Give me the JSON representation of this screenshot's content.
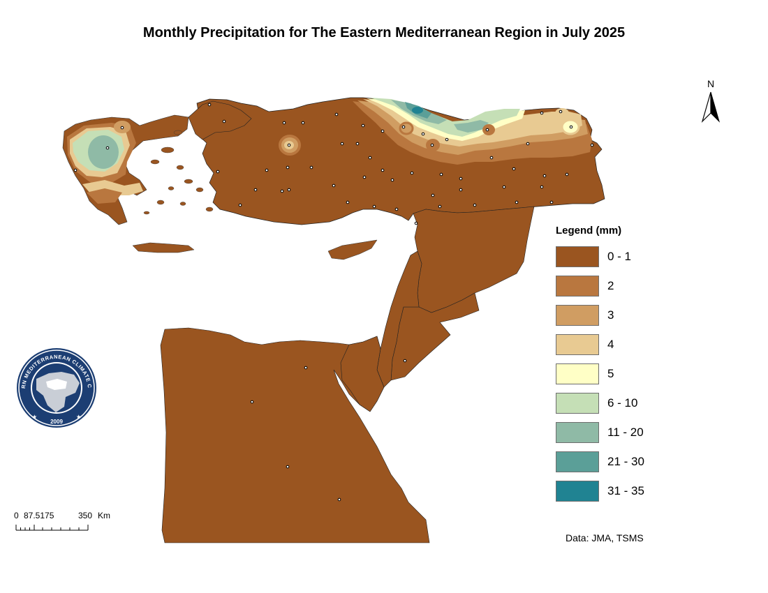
{
  "title": "Monthly Precipitation for The Eastern Mediterranean Region in July 2025",
  "legend": {
    "title": "Legend (mm)",
    "classes": [
      {
        "label": "0 - 1",
        "color": "#9a5520"
      },
      {
        "label": "2",
        "color": "#b9773f"
      },
      {
        "label": "3",
        "color": "#d09d62"
      },
      {
        "label": "4",
        "color": "#e8ca92"
      },
      {
        "label": "5",
        "color": "#ffffc6"
      },
      {
        "label": "6 - 10",
        "color": "#c5dfb6"
      },
      {
        "label": "11 - 20",
        "color": "#8fbaa6"
      },
      {
        "label": "21 - 30",
        "color": "#5b9f98"
      },
      {
        "label": "31 - 35",
        "color": "#208392"
      }
    ]
  },
  "scale_bar": {
    "labels": [
      "0",
      "87.5175",
      "350"
    ],
    "unit": "Km"
  },
  "north_arrow": {
    "label": "N"
  },
  "credit": "Data: JMA, TSMS",
  "logo": {
    "ring_text": "EASTERN MEDITERRANEAN CLIMATE CENTRE",
    "year": "2009"
  },
  "colors": {
    "ocean": "#ffffff",
    "land": "#9a5520",
    "boundary": "#222222"
  }
}
